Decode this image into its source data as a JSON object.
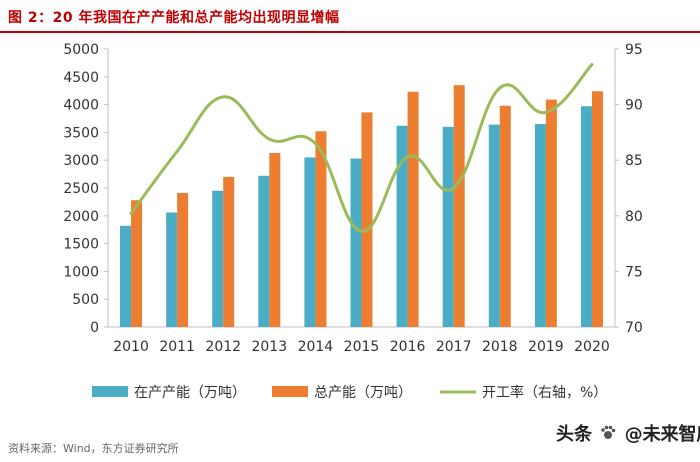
{
  "title": "图 2：20 年我国在产产能和总产能均出现明显增幅",
  "source": "资料来源：Wind，东方证券研究所",
  "watermark": {
    "prefix": "头条",
    "handle": "@未来智库"
  },
  "colors": {
    "title": "#c00000",
    "series_producing": "#4bacc6",
    "series_total": "#ed7d31",
    "series_rate": "#9bbb59",
    "axis_text": "#333333",
    "axis_line": "#bfbfbf"
  },
  "chart_data": {
    "type": "bar",
    "categories": [
      "2010",
      "2011",
      "2012",
      "2013",
      "2014",
      "2015",
      "2016",
      "2017",
      "2018",
      "2019",
      "2020"
    ],
    "series": [
      {
        "name": "在产产能（万吨）",
        "type": "bar",
        "axis": "left",
        "values": [
          1820,
          2060,
          2450,
          2720,
          3050,
          3030,
          3620,
          3600,
          3640,
          3650,
          3970
        ]
      },
      {
        "name": "总产能（万吨）",
        "type": "bar",
        "axis": "left",
        "values": [
          2280,
          2410,
          2700,
          3130,
          3520,
          3860,
          4230,
          4350,
          3980,
          4090,
          4240
        ]
      },
      {
        "name": "开工率（右轴，%）",
        "type": "line",
        "axis": "right",
        "values": [
          80.2,
          85.8,
          90.7,
          86.9,
          86.5,
          78.6,
          85.3,
          82.5,
          91.5,
          89.3,
          93.6
        ]
      }
    ],
    "yleft": {
      "min": 0,
      "max": 5000,
      "step": 500,
      "ticks": [
        "0",
        "500",
        "1000",
        "1500",
        "2000",
        "2500",
        "3000",
        "3500",
        "4000",
        "4500",
        "5000"
      ]
    },
    "yright": {
      "min": 70,
      "max": 95,
      "step": 5,
      "ticks": [
        "70",
        "75",
        "80",
        "85",
        "90",
        "95"
      ]
    },
    "legend": {
      "position": "bottom",
      "labels": [
        "在产产能（万吨）",
        "总产能（万吨）",
        "开工率（右轴，%）"
      ]
    }
  }
}
